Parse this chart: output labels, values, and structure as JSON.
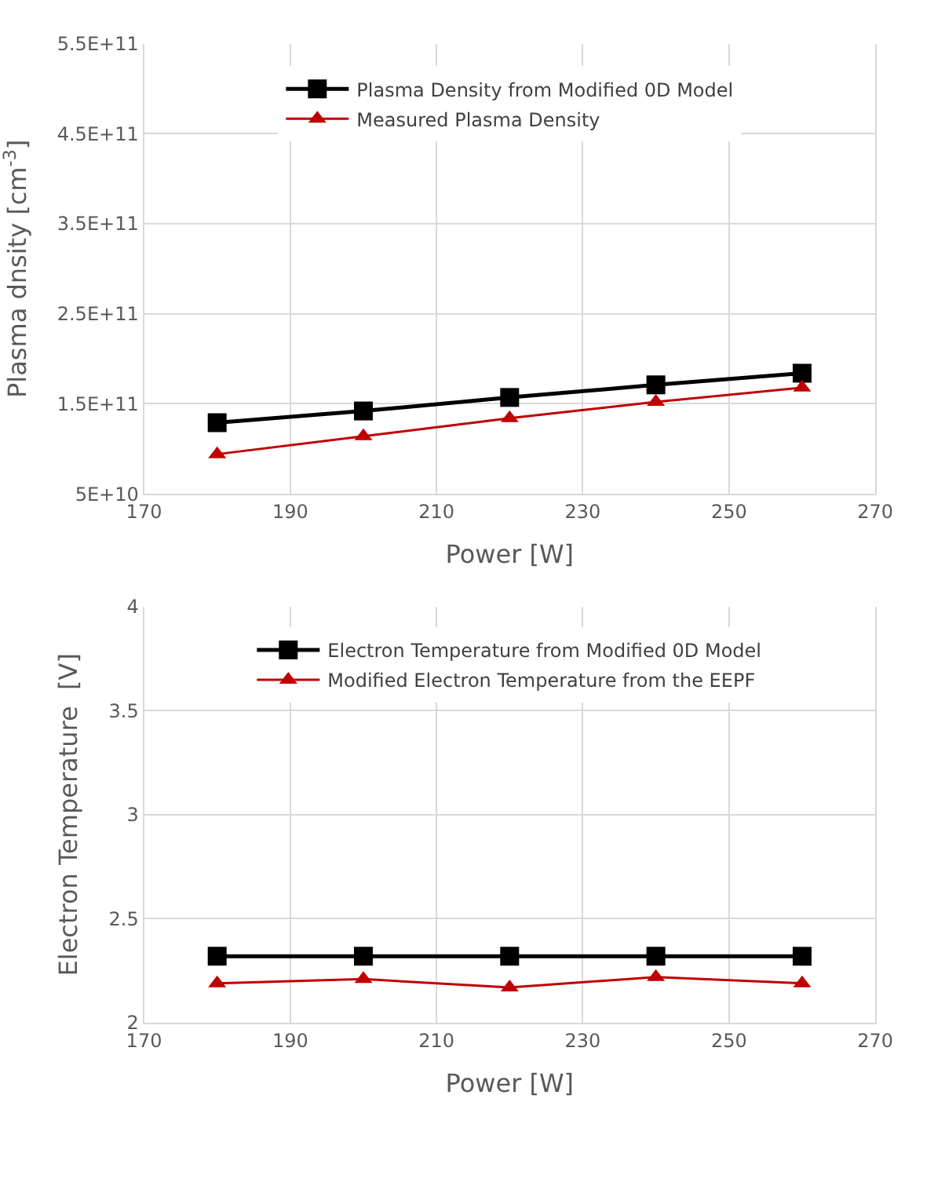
{
  "chart_data": [
    {
      "type": "line",
      "xlabel": "Power [W]",
      "ylabel": "Plasma dnsity [cm$^{-3}$]",
      "x": [
        180,
        200,
        220,
        240,
        260
      ],
      "series": [
        {
          "name": "Plasma Density from Modified 0D Model",
          "color": "#000000",
          "marker": "square",
          "values": [
            129000000000.0,
            142000000000.0,
            157000000000.0,
            171000000000.0,
            184000000000.0
          ]
        },
        {
          "name": "Measured Plasma Density",
          "color": "#c00000",
          "marker": "triangle",
          "values": [
            94000000000.0,
            114000000000.0,
            134000000000.0,
            152000000000.0,
            168000000000.0
          ]
        }
      ],
      "xlim": [
        170,
        270
      ],
      "xticks": [
        170,
        190,
        210,
        230,
        250,
        270
      ],
      "ylim": [
        50000000000.0,
        550000000000.0
      ],
      "yticks": [
        {
          "value": 50000000000.0,
          "label": "5E+10"
        },
        {
          "value": 150000000000.0,
          "label": "1.5E+11"
        },
        {
          "value": 250000000000.0,
          "label": "2.5E+11"
        },
        {
          "value": 350000000000.0,
          "label": "3.5E+11"
        },
        {
          "value": 450000000000.0,
          "label": "4.5E+11"
        },
        {
          "value": 550000000000.0,
          "label": "5.5E+11"
        }
      ],
      "grid": true,
      "legend": "top"
    },
    {
      "type": "line",
      "xlabel": "Power [W]",
      "ylabel": "Electron Temperature  [V]",
      "x": [
        180,
        200,
        220,
        240,
        260
      ],
      "series": [
        {
          "name": "Electron Temperature from Modified 0D Model",
          "color": "#000000",
          "marker": "square",
          "values": [
            2.32,
            2.32,
            2.32,
            2.32,
            2.32
          ]
        },
        {
          "name": "Modified Electron Temperature from the EEPF",
          "color": "#c00000",
          "marker": "triangle",
          "values": [
            2.19,
            2.21,
            2.17,
            2.22,
            2.19
          ]
        }
      ],
      "xlim": [
        170,
        270
      ],
      "xticks": [
        170,
        190,
        210,
        230,
        250,
        270
      ],
      "ylim": [
        2,
        4
      ],
      "yticks": [
        2,
        2.5,
        3,
        3.5,
        4
      ],
      "grid": true,
      "legend": "top"
    }
  ]
}
